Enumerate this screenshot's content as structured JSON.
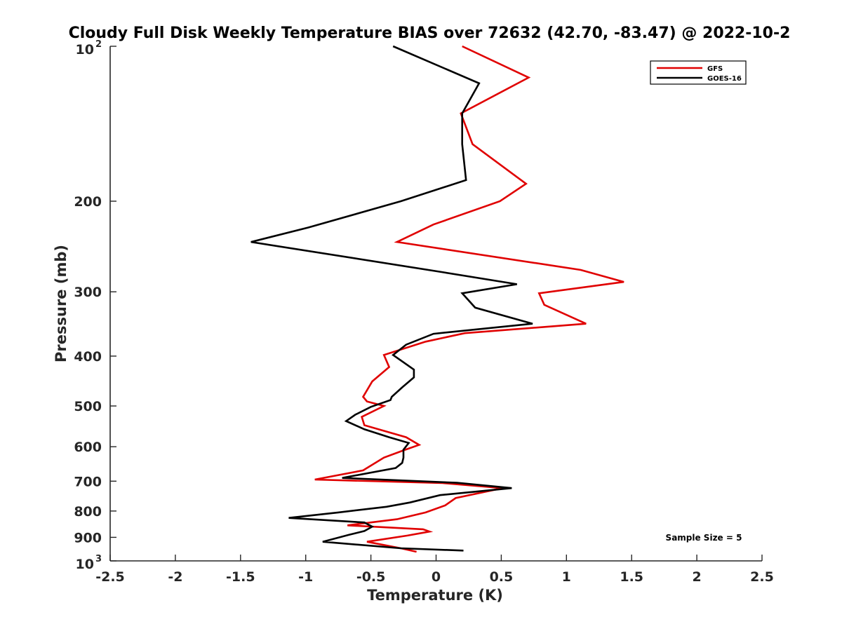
{
  "chart_data": {
    "type": "line",
    "title": "Cloudy Full Disk Weekly Temperature BIAS over 72632 (42.70, -83.47) @ 2022-10-2",
    "xlabel": "Temperature (K)",
    "ylabel": "Pressure (mb)",
    "xlim": [
      -2.5,
      2.5
    ],
    "ylim": [
      100,
      1000
    ],
    "y_scale": "log",
    "y_reversed": true,
    "x_ticks": [
      "-2.5",
      "-2",
      "-1.5",
      "-1",
      "-0.5",
      "0",
      "0.5",
      "1",
      "1.5",
      "2",
      "2.5"
    ],
    "y_ticks": [
      {
        "value": 100,
        "base": "10",
        "exp": "2"
      },
      {
        "value": 200,
        "label": "200"
      },
      {
        "value": 300,
        "label": "300"
      },
      {
        "value": 400,
        "label": "400"
      },
      {
        "value": 500,
        "label": "500"
      },
      {
        "value": 600,
        "label": "600"
      },
      {
        "value": 700,
        "label": "700"
      },
      {
        "value": 800,
        "label": "800"
      },
      {
        "value": 900,
        "label": "900"
      },
      {
        "value": 1000,
        "base": "10",
        "exp": "3"
      }
    ],
    "legend_position": "top-right",
    "annotation": "Sample Size = 5",
    "series": [
      {
        "name": "GFS",
        "color": "#e00000",
        "points": [
          [
            0.2,
            100
          ],
          [
            0.71,
            115
          ],
          [
            0.19,
            135
          ],
          [
            0.28,
            155
          ],
          [
            0.69,
            185
          ],
          [
            0.49,
            200
          ],
          [
            -0.02,
            222
          ],
          [
            -0.3,
            240
          ],
          [
            1.11,
            272
          ],
          [
            1.44,
            287
          ],
          [
            0.79,
            302
          ],
          [
            0.83,
            318
          ],
          [
            1.15,
            346
          ],
          [
            0.22,
            361
          ],
          [
            -0.08,
            375
          ],
          [
            -0.4,
            398
          ],
          [
            -0.36,
            420
          ],
          [
            -0.49,
            448
          ],
          [
            -0.56,
            480
          ],
          [
            -0.53,
            490
          ],
          [
            -0.4,
            500
          ],
          [
            -0.57,
            525
          ],
          [
            -0.55,
            545
          ],
          [
            -0.23,
            575
          ],
          [
            -0.13,
            595
          ],
          [
            -0.25,
            610
          ],
          [
            -0.4,
            630
          ],
          [
            -0.56,
            667
          ],
          [
            -0.93,
            695
          ],
          [
            0.05,
            706
          ],
          [
            0.51,
            722
          ],
          [
            0.15,
            755
          ],
          [
            0.07,
            780
          ],
          [
            -0.08,
            805
          ],
          [
            -0.3,
            830
          ],
          [
            -0.68,
            853
          ],
          [
            -0.1,
            868
          ],
          [
            -0.05,
            877
          ],
          [
            -0.22,
            893
          ],
          [
            -0.53,
            918
          ],
          [
            -0.27,
            945
          ],
          [
            -0.15,
            960
          ]
        ]
      },
      {
        "name": "GOES-16",
        "color": "#000000",
        "points": [
          [
            -0.33,
            100
          ],
          [
            0.33,
            118
          ],
          [
            0.2,
            135
          ],
          [
            0.2,
            155
          ],
          [
            0.23,
            182
          ],
          [
            -0.27,
            200
          ],
          [
            -0.98,
            225
          ],
          [
            -1.42,
            240
          ],
          [
            0.06,
            275
          ],
          [
            0.62,
            290
          ],
          [
            0.2,
            302
          ],
          [
            0.3,
            322
          ],
          [
            0.74,
            346
          ],
          [
            -0.02,
            362
          ],
          [
            -0.23,
            380
          ],
          [
            -0.33,
            398
          ],
          [
            -0.17,
            425
          ],
          [
            -0.17,
            440
          ],
          [
            -0.26,
            460
          ],
          [
            -0.34,
            480
          ],
          [
            -0.35,
            487
          ],
          [
            -0.5,
            502
          ],
          [
            -0.62,
            520
          ],
          [
            -0.69,
            535
          ],
          [
            -0.55,
            555
          ],
          [
            -0.36,
            575
          ],
          [
            -0.21,
            590
          ],
          [
            -0.25,
            608
          ],
          [
            -0.25,
            630
          ],
          [
            -0.26,
            645
          ],
          [
            -0.31,
            660
          ],
          [
            -0.72,
            690
          ],
          [
            0.16,
            705
          ],
          [
            0.58,
            722
          ],
          [
            0.03,
            745
          ],
          [
            -0.2,
            770
          ],
          [
            -0.38,
            785
          ],
          [
            -0.75,
            805
          ],
          [
            -1.13,
            825
          ],
          [
            -0.55,
            842
          ],
          [
            -0.49,
            858
          ],
          [
            -0.55,
            875
          ],
          [
            -0.67,
            890
          ],
          [
            -0.87,
            918
          ],
          [
            -0.27,
            945
          ],
          [
            0.21,
            955
          ]
        ]
      }
    ]
  }
}
